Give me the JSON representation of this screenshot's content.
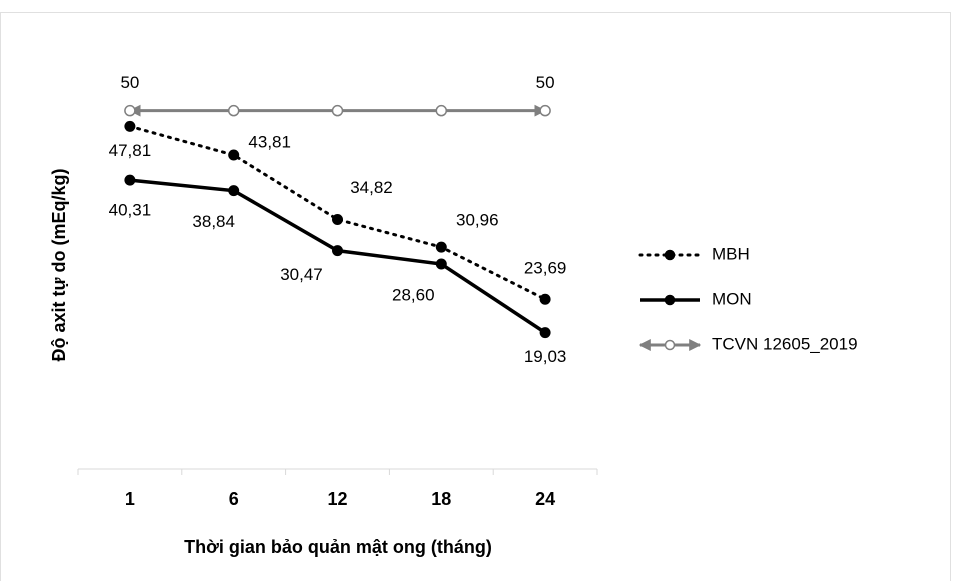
{
  "chart_data": {
    "type": "line",
    "y_label": "Độ axit tự do (mEq/kg)",
    "x_label": "Thời gian bảo quản mật ong (tháng)",
    "categories": [
      "1",
      "6",
      "12",
      "18",
      "24"
    ],
    "ylim": [
      0,
      60
    ],
    "legend": "right",
    "series": [
      {
        "name": "MBH",
        "color": "#000000",
        "style": "dotted",
        "marker": "filled",
        "values": [
          47.81,
          43.81,
          34.82,
          30.96,
          23.69
        ],
        "value_labels": [
          "47,81",
          "43,81",
          "34,82",
          "30,96",
          "23,69"
        ]
      },
      {
        "name": "MON",
        "color": "#000000",
        "style": "solid",
        "marker": "filled",
        "values": [
          40.31,
          38.84,
          30.47,
          28.6,
          19.03
        ],
        "value_labels": [
          "40,31",
          "38,84",
          "30,47",
          "28,60",
          "19,03"
        ]
      },
      {
        "name": "TCVN 12605_2019",
        "color": "#7f7f7f",
        "style": "arrow",
        "marker": "hollow",
        "values": [
          50,
          50,
          50,
          50,
          50
        ],
        "value_labels": [
          "50",
          null,
          null,
          null,
          "50"
        ]
      }
    ]
  }
}
